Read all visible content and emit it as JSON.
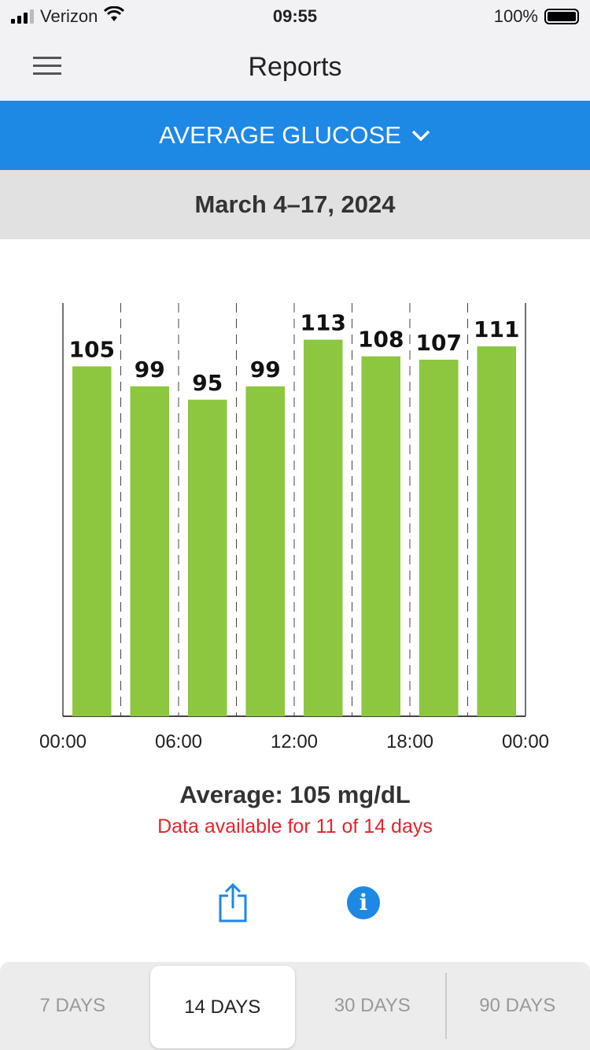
{
  "status_bar": {
    "carrier": "Verizon",
    "time": "09:55",
    "battery": "100%"
  },
  "nav": {
    "title": "Reports"
  },
  "report_selector": {
    "label": "AVERAGE GLUCOSE"
  },
  "date_range": "March 4–17, 2024",
  "chart_data": {
    "type": "bar",
    "categories": [
      "00:00-03:00",
      "03:00-06:00",
      "06:00-09:00",
      "09:00-12:00",
      "12:00-15:00",
      "15:00-18:00",
      "18:00-21:00",
      "21:00-24:00"
    ],
    "values": [
      105,
      99,
      95,
      99,
      113,
      108,
      107,
      111
    ],
    "x_tick_labels": [
      "00:00",
      "06:00",
      "12:00",
      "18:00",
      "00:00"
    ],
    "ylim": [
      0,
      124
    ],
    "bar_color": "#8dc63f"
  },
  "summary": {
    "average": "Average: 105 mg/dL",
    "availability": "Data available for 11 of 14 days"
  },
  "tabs": [
    {
      "label": "7 DAYS"
    },
    {
      "label": "14 DAYS"
    },
    {
      "label": "30 DAYS"
    },
    {
      "label": "90 DAYS"
    }
  ]
}
